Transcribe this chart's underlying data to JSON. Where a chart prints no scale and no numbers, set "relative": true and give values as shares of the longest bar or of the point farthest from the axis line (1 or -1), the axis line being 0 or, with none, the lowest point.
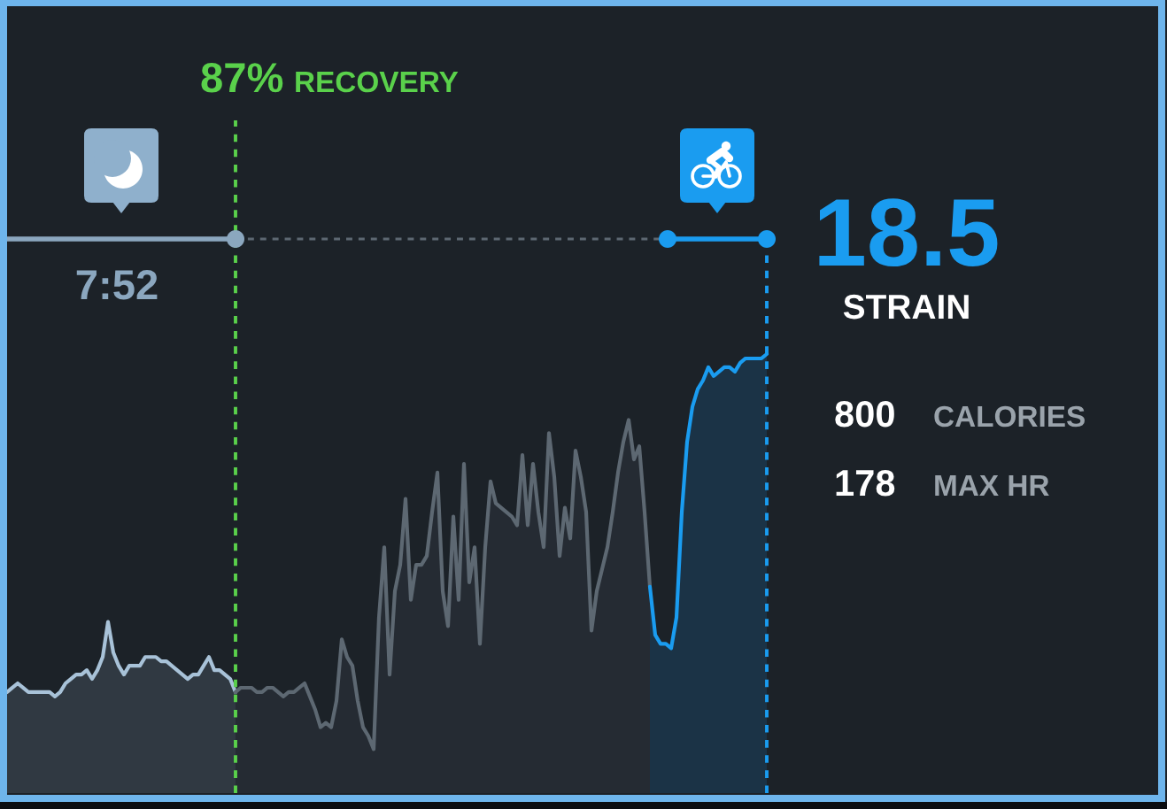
{
  "chart_data": {
    "type": "area",
    "relative": true,
    "categories": [
      null,
      null,
      null,
      null,
      null,
      null,
      null,
      null,
      null,
      null,
      null,
      null,
      null,
      null,
      null,
      null,
      null,
      null,
      null,
      null,
      null,
      null,
      null,
      null,
      null,
      null,
      null,
      null,
      null,
      null,
      null,
      null,
      null,
      null,
      null,
      null,
      null,
      null,
      null,
      null,
      null,
      null,
      null,
      null,
      null,
      null,
      null,
      null,
      null,
      null,
      null,
      null,
      null,
      null,
      null,
      null,
      null,
      null,
      null,
      null,
      null,
      null,
      null,
      null,
      null,
      null,
      null,
      null,
      null,
      null,
      null,
      null,
      null,
      null,
      null,
      null,
      null,
      null,
      null,
      null,
      null,
      null,
      null,
      null,
      null,
      null,
      null,
      null,
      null,
      null,
      null,
      null,
      null,
      null,
      null,
      null,
      null,
      null,
      null,
      null,
      null,
      null,
      null,
      null,
      null,
      null,
      null,
      null,
      null,
      null,
      null,
      null,
      null,
      null,
      null,
      null,
      null,
      null,
      null,
      null,
      null,
      null,
      null,
      null,
      null,
      null,
      null,
      null,
      null,
      null,
      null,
      null,
      null,
      null,
      null,
      null,
      null,
      null,
      null,
      null,
      null,
      null,
      null,
      null
    ],
    "series": [
      {
        "color": "#a8c2d8",
        "values": [
          0.23,
          0.24,
          0.25,
          0.24,
          0.23,
          0.23,
          0.23,
          0.23,
          0.23,
          0.22,
          0.23,
          0.25,
          0.26,
          0.27,
          0.27,
          0.28,
          0.26,
          0.28,
          0.31,
          0.39,
          0.32,
          0.29,
          0.27,
          0.29,
          0.29,
          0.29,
          0.31,
          0.31,
          0.31,
          0.3,
          0.3,
          0.29,
          0.28,
          0.27,
          0.26,
          0.27,
          0.27,
          0.29,
          0.31,
          0.28,
          0.28,
          0.27,
          0.26,
          0.23,
          null,
          null,
          null,
          null,
          null,
          null,
          null,
          null,
          null,
          null,
          null,
          null,
          null,
          null,
          null,
          null,
          null,
          null,
          null,
          null,
          null,
          null,
          null,
          null,
          null,
          null,
          null,
          null,
          null,
          null,
          null,
          null,
          null,
          null,
          null,
          null,
          null,
          null,
          null,
          null,
          null,
          null,
          null,
          null,
          null,
          null,
          null,
          null,
          null,
          null,
          null,
          null,
          null,
          null,
          null,
          null,
          null,
          null,
          null,
          null,
          null,
          null,
          null,
          null,
          null,
          null,
          null,
          null,
          null,
          null,
          null,
          null,
          null,
          null,
          null,
          null,
          null,
          null,
          null,
          null,
          null,
          null,
          null,
          null,
          null,
          null,
          null,
          null,
          null,
          null,
          null,
          null,
          null,
          null,
          null,
          null,
          null,
          null,
          null,
          null
        ]
      },
      {
        "color": "#5d6872",
        "values": [
          null,
          null,
          null,
          null,
          null,
          null,
          null,
          null,
          null,
          null,
          null,
          null,
          null,
          null,
          null,
          null,
          null,
          null,
          null,
          null,
          null,
          null,
          null,
          null,
          null,
          null,
          null,
          null,
          null,
          null,
          null,
          null,
          null,
          null,
          null,
          null,
          null,
          null,
          null,
          null,
          null,
          null,
          null,
          0.23,
          0.24,
          0.24,
          0.24,
          0.23,
          0.23,
          0.24,
          0.24,
          0.23,
          0.22,
          0.23,
          0.23,
          0.24,
          0.25,
          0.22,
          0.19,
          0.15,
          0.16,
          0.15,
          0.21,
          0.35,
          0.31,
          0.29,
          0.21,
          0.15,
          0.13,
          0.1,
          0.4,
          0.56,
          0.27,
          0.46,
          0.52,
          0.67,
          0.44,
          0.52,
          0.52,
          0.54,
          0.64,
          0.73,
          0.46,
          0.38,
          0.63,
          0.44,
          0.75,
          0.48,
          0.56,
          0.34,
          0.56,
          0.71,
          0.66,
          0.65,
          0.64,
          0.63,
          0.61,
          0.77,
          0.61,
          0.75,
          0.64,
          0.56,
          0.82,
          0.72,
          0.54,
          0.65,
          0.58,
          0.78,
          0.72,
          0.64,
          0.37,
          0.46,
          0.51,
          0.56,
          0.64,
          0.73,
          0.8,
          0.85,
          0.76,
          0.79,
          0.64,
          0.47,
          null,
          null,
          null,
          null,
          null,
          null,
          null,
          null,
          null,
          null,
          null,
          null,
          null,
          null,
          null,
          null,
          null,
          null,
          null,
          null,
          null,
          null
        ]
      },
      {
        "color": "#1a9cf0",
        "values": [
          null,
          null,
          null,
          null,
          null,
          null,
          null,
          null,
          null,
          null,
          null,
          null,
          null,
          null,
          null,
          null,
          null,
          null,
          null,
          null,
          null,
          null,
          null,
          null,
          null,
          null,
          null,
          null,
          null,
          null,
          null,
          null,
          null,
          null,
          null,
          null,
          null,
          null,
          null,
          null,
          null,
          null,
          null,
          null,
          null,
          null,
          null,
          null,
          null,
          null,
          null,
          null,
          null,
          null,
          null,
          null,
          null,
          null,
          null,
          null,
          null,
          null,
          null,
          null,
          null,
          null,
          null,
          null,
          null,
          null,
          null,
          null,
          null,
          null,
          null,
          null,
          null,
          null,
          null,
          null,
          null,
          null,
          null,
          null,
          null,
          null,
          null,
          null,
          null,
          null,
          null,
          null,
          null,
          null,
          null,
          null,
          null,
          null,
          null,
          null,
          null,
          null,
          null,
          null,
          null,
          null,
          null,
          null,
          null,
          null,
          null,
          null,
          null,
          null,
          null,
          null,
          null,
          null,
          null,
          null,
          null,
          0.47,
          0.36,
          0.34,
          0.34,
          0.33,
          0.4,
          0.64,
          0.8,
          0.88,
          0.92,
          0.94,
          0.97,
          0.95,
          0.96,
          0.97,
          0.97,
          0.96,
          0.98,
          0.99,
          0.99,
          0.99,
          0.99,
          1
        ]
      }
    ],
    "annotations": [
      "87%",
      "RECOVERY",
      "7:52",
      "18.5",
      "STRAIN",
      "800",
      "CALORIES",
      "178",
      "MAX HR"
    ]
  }
}
